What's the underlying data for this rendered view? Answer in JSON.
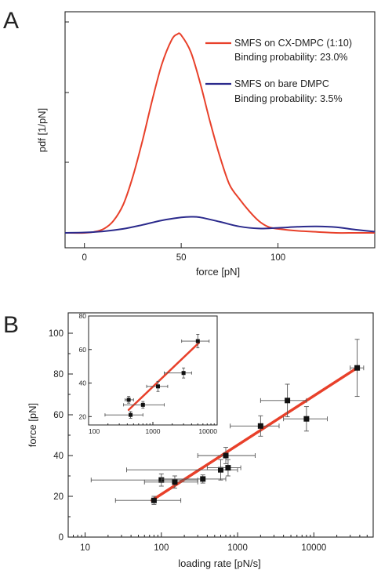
{
  "chart_data": [
    {
      "panel_label": "A",
      "type": "line",
      "xlabel": "force [pN]",
      "ylabel": "pdf [1/pN]",
      "xlim": [
        -10,
        150
      ],
      "ylim": [
        0,
        1
      ],
      "x_ticks": [
        0,
        50,
        100
      ],
      "x_tick_labels": [
        "0",
        "50",
        "100"
      ],
      "y_tick_labels_shown": false,
      "grid": false,
      "legend_placement": "top-right",
      "legend": [
        {
          "label": "SMFS on CX-DMPC (1:10)",
          "sublabel": "Binding probability: 23.0%",
          "color": "#e8402a"
        },
        {
          "label": "SMFS on bare DMPC",
          "sublabel": "Binding probability: 3.5%",
          "color": "#2b2a8c"
        }
      ],
      "series": [
        {
          "color": "#e8402a",
          "x": [
            -10,
            0,
            5,
            10,
            15,
            20,
            25,
            30,
            35,
            40,
            45,
            48,
            50,
            55,
            60,
            65,
            70,
            75,
            80,
            85,
            90,
            95,
            100,
            110,
            120,
            130,
            140,
            150
          ],
          "y": [
            0.0,
            0.0,
            0.005,
            0.02,
            0.06,
            0.14,
            0.28,
            0.46,
            0.66,
            0.84,
            0.96,
            0.99,
            0.985,
            0.9,
            0.74,
            0.55,
            0.38,
            0.24,
            0.17,
            0.11,
            0.06,
            0.03,
            0.02,
            0.01,
            0.005,
            0.0,
            0.0,
            0.0
          ]
        },
        {
          "color": "#2b2a8c",
          "x": [
            -10,
            0,
            10,
            20,
            30,
            40,
            50,
            55,
            60,
            70,
            80,
            90,
            100,
            110,
            120,
            130,
            140,
            150
          ],
          "y": [
            0.0,
            0.002,
            0.008,
            0.02,
            0.04,
            0.062,
            0.077,
            0.08,
            0.077,
            0.055,
            0.032,
            0.022,
            0.025,
            0.03,
            0.032,
            0.028,
            0.016,
            0.006
          ]
        }
      ]
    },
    {
      "panel_label": "B",
      "type": "scatter",
      "xlabel": "loading rate [pN/s]",
      "ylabel": "force [pN]",
      "xscale": "log",
      "xlim": [
        6,
        60000
      ],
      "ylim": [
        0,
        110
      ],
      "x_ticks": [
        10,
        100,
        1000,
        10000
      ],
      "x_tick_labels": [
        "10",
        "100",
        "1000",
        "10000"
      ],
      "y_ticks": [
        0,
        20,
        40,
        60,
        80,
        100
      ],
      "y_tick_labels": [
        "0",
        "20",
        "40",
        "60",
        "80",
        "100"
      ],
      "grid": false,
      "fit_line": {
        "color": "#e8402a",
        "x": [
          75,
          37000
        ],
        "y": [
          18,
          83
        ]
      },
      "points": [
        {
          "x": 80,
          "y": 18,
          "xerr_low": 25,
          "xerr_high": 180,
          "yerr": 2
        },
        {
          "x": 100,
          "y": 28,
          "xerr_low": 12,
          "xerr_high": 300,
          "yerr": 3
        },
        {
          "x": 150,
          "y": 27,
          "xerr_low": 60,
          "xerr_high": 300,
          "yerr": 3
        },
        {
          "x": 350,
          "y": 28.5,
          "xerr_low": 100,
          "xerr_high": 700,
          "yerr": 2
        },
        {
          "x": 600,
          "y": 33,
          "xerr_low": 35,
          "xerr_high": 1000,
          "yerr": 5
        },
        {
          "x": 700,
          "y": 40,
          "xerr_low": 300,
          "xerr_high": 1700,
          "yerr": 4
        },
        {
          "x": 750,
          "y": 34,
          "xerr_low": 400,
          "xerr_high": 1100,
          "yerr": 4
        },
        {
          "x": 2000,
          "y": 54.5,
          "xerr_low": 800,
          "xerr_high": 3500,
          "yerr": 5
        },
        {
          "x": 4500,
          "y": 67,
          "xerr_low": 2000,
          "xerr_high": 8000,
          "yerr": 8
        },
        {
          "x": 8000,
          "y": 58,
          "xerr_low": 4000,
          "xerr_high": 15000,
          "yerr": 6
        },
        {
          "x": 37000,
          "y": 83,
          "xerr_low": 30000,
          "xerr_high": 45000,
          "yerr": 14
        }
      ],
      "inset": {
        "xscale": "log",
        "xlim": [
          100,
          10000
        ],
        "ylim": [
          15,
          80
        ],
        "x_ticks": [
          100,
          1000,
          10000
        ],
        "x_tick_labels": [
          "100",
          "1000",
          "10000"
        ],
        "y_ticks": [
          20,
          40,
          60,
          80
        ],
        "y_tick_labels": [
          "20",
          "40",
          "60",
          "80"
        ],
        "fit_line": {
          "color": "#e8402a",
          "x": [
            420,
            5200
          ],
          "y": [
            24,
            64
          ]
        },
        "points": [
          {
            "x": 420,
            "y": 30,
            "xerr_low": 370,
            "xerr_high": 500,
            "yerr": 2
          },
          {
            "x": 450,
            "y": 21,
            "xerr_low": 180,
            "xerr_high": 700,
            "yerr": 2
          },
          {
            "x": 700,
            "y": 27,
            "xerr_low": 350,
            "xerr_high": 1500,
            "yerr": 2
          },
          {
            "x": 1200,
            "y": 38,
            "xerr_low": 800,
            "xerr_high": 1700,
            "yerr": 3
          },
          {
            "x": 3000,
            "y": 46,
            "xerr_low": 1500,
            "xerr_high": 4000,
            "yerr": 3
          },
          {
            "x": 5000,
            "y": 65,
            "xerr_low": 2800,
            "xerr_high": 7500,
            "yerr": 4
          }
        ]
      }
    }
  ]
}
